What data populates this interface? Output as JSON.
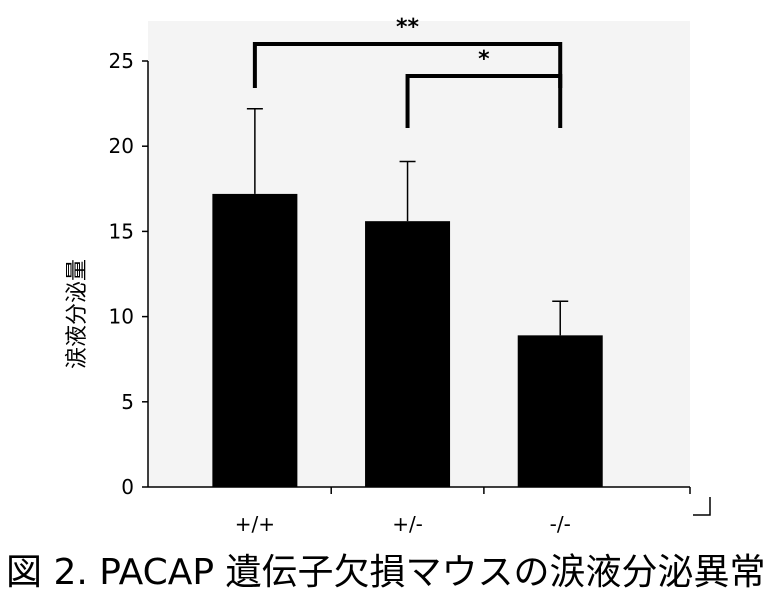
{
  "chart_data": {
    "type": "bar",
    "categories": [
      "+/+",
      "+/-",
      "-/-"
    ],
    "values": [
      17.2,
      15.6,
      8.9
    ],
    "error_upper": [
      22.2,
      19.1,
      10.9
    ],
    "ylabel": "涙液分泌量",
    "ylim": [
      0,
      25
    ],
    "yticks": [
      0,
      5,
      10,
      15,
      20,
      25
    ],
    "bar_color": "#000000",
    "grid": false,
    "annotations": [
      {
        "label": "**",
        "from": 0,
        "to": 2
      },
      {
        "label": "*",
        "from": 1,
        "to": 2
      }
    ]
  },
  "caption": "図 2. PACAP 遺伝子欠損マウスの涙液分泌異常"
}
